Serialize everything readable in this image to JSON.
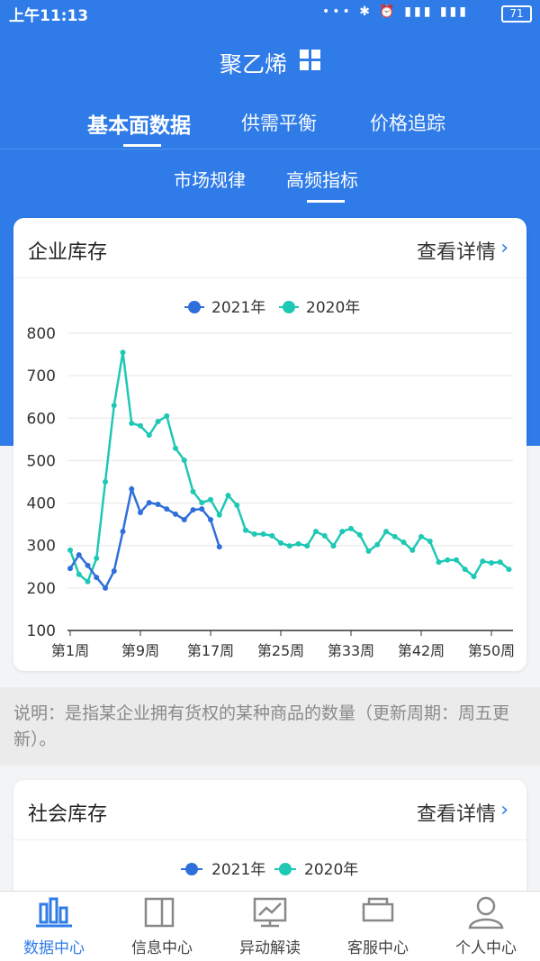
{
  "status_bar": {
    "time": "上午11:13",
    "battery": "71"
  },
  "header": {
    "title": "聚乙烯"
  },
  "tabs": [
    "基本面数据",
    "供需平衡",
    "价格追踪"
  ],
  "subtabs": [
    "市场规律",
    "高频指标"
  ],
  "cards": [
    {
      "title": "企业库存",
      "link": "查看详情"
    },
    {
      "title": "社会库存",
      "link": "查看详情",
      "legend": [
        "2021年",
        "2020年"
      ]
    }
  ],
  "chart_data": {
    "type": "line",
    "categories": [
      "第1周",
      null,
      null,
      null,
      null,
      null,
      null,
      null,
      "第9周",
      null,
      null,
      null,
      null,
      null,
      null,
      null,
      "第17周",
      null,
      null,
      null,
      null,
      null,
      null,
      null,
      "第25周",
      null,
      null,
      null,
      null,
      null,
      null,
      null,
      "第33周",
      null,
      null,
      null,
      null,
      null,
      null,
      null,
      "第42周",
      null,
      null,
      null,
      null,
      null,
      null,
      null,
      "第50周",
      null,
      null
    ],
    "series": [
      {
        "name": "2021年",
        "color": "#2f6fdc",
        "values": [
          246,
          278,
          253,
          225,
          200,
          240,
          333,
          433,
          378,
          401,
          397,
          386,
          374,
          361,
          384,
          386,
          361,
          297,
          null,
          null,
          null,
          null,
          null,
          null,
          null,
          null,
          null,
          null,
          null,
          null,
          null,
          null,
          null,
          null,
          null,
          null,
          null,
          null,
          null,
          null,
          null,
          null,
          null,
          null,
          null,
          null,
          null,
          null,
          null,
          null,
          null
        ]
      },
      {
        "name": "2020年",
        "color": "#1ec8b4",
        "values": [
          289,
          232,
          215,
          270,
          450,
          630,
          755,
          588,
          582,
          560,
          592,
          605,
          529,
          501,
          427,
          401,
          408,
          372,
          418,
          395,
          336,
          327,
          327,
          323,
          306,
          299,
          304,
          299,
          333,
          323,
          299,
          333,
          340,
          325,
          287,
          302,
          333,
          321,
          308,
          289,
          321,
          310,
          261,
          266,
          266,
          244,
          227,
          263,
          259,
          261,
          244
        ]
      }
    ],
    "ylim": [
      100,
      800
    ],
    "yticks": [
      100,
      200,
      300,
      400,
      500,
      600,
      700,
      800
    ],
    "grid": true
  },
  "note": "说明：是指某企业拥有货权的某种商品的数量（更新周期：周五更新）。",
  "nav": [
    "数据中心",
    "信息中心",
    "异动解读",
    "客服中心",
    "个人中心"
  ]
}
